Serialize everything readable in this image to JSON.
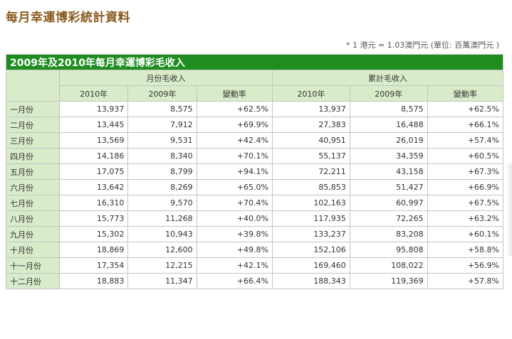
{
  "page_title": "每月幸運博彩統計資料",
  "note": "* 1 港元 = 1.03澳門元 (單位: 百萬澳門元 )",
  "table": {
    "caption": "2009年及2010年每月幸運博彩毛收入",
    "group_headers": [
      "月份毛收入",
      "累計毛收入"
    ],
    "sub_headers": [
      "2010年",
      "2009年",
      "變動率",
      "2010年",
      "2009年",
      "變動率"
    ],
    "rows": [
      [
        "一月份",
        "13,937",
        "8,575",
        "+62.5%",
        "13,937",
        "8,575",
        "+62.5%"
      ],
      [
        "二月份",
        "13,445",
        "7,912",
        "+69.9%",
        "27,383",
        "16,488",
        "+66.1%"
      ],
      [
        "三月份",
        "13,569",
        "9,531",
        "+42.4%",
        "40,951",
        "26,019",
        "+57.4%"
      ],
      [
        "四月份",
        "14,186",
        "8,340",
        "+70.1%",
        "55,137",
        "34,359",
        "+60.5%"
      ],
      [
        "五月份",
        "17,075",
        "8,799",
        "+94.1%",
        "72,211",
        "43,158",
        "+67.3%"
      ],
      [
        "六月份",
        "13,642",
        "8,269",
        "+65.0%",
        "85,853",
        "51,427",
        "+66.9%"
      ],
      [
        "七月份",
        "16,310",
        "9,570",
        "+70.4%",
        "102,163",
        "60,997",
        "+67.5%"
      ],
      [
        "八月份",
        "15,773",
        "11,268",
        "+40.0%",
        "117,935",
        "72,265",
        "+63.2%"
      ],
      [
        "九月份",
        "15,302",
        "10,943",
        "+39.8%",
        "133,237",
        "83,208",
        "+60.1%"
      ],
      [
        "十月份",
        "18,869",
        "12,600",
        "+49.8%",
        "152,106",
        "95,808",
        "+58.8%"
      ],
      [
        "十一月份",
        "17,354",
        "12,215",
        "+42.1%",
        "169,460",
        "108,022",
        "+56.9%"
      ],
      [
        "十二月份",
        "18,883",
        "11,347",
        "+66.4%",
        "188,343",
        "119,369",
        "+57.8%"
      ]
    ]
  }
}
